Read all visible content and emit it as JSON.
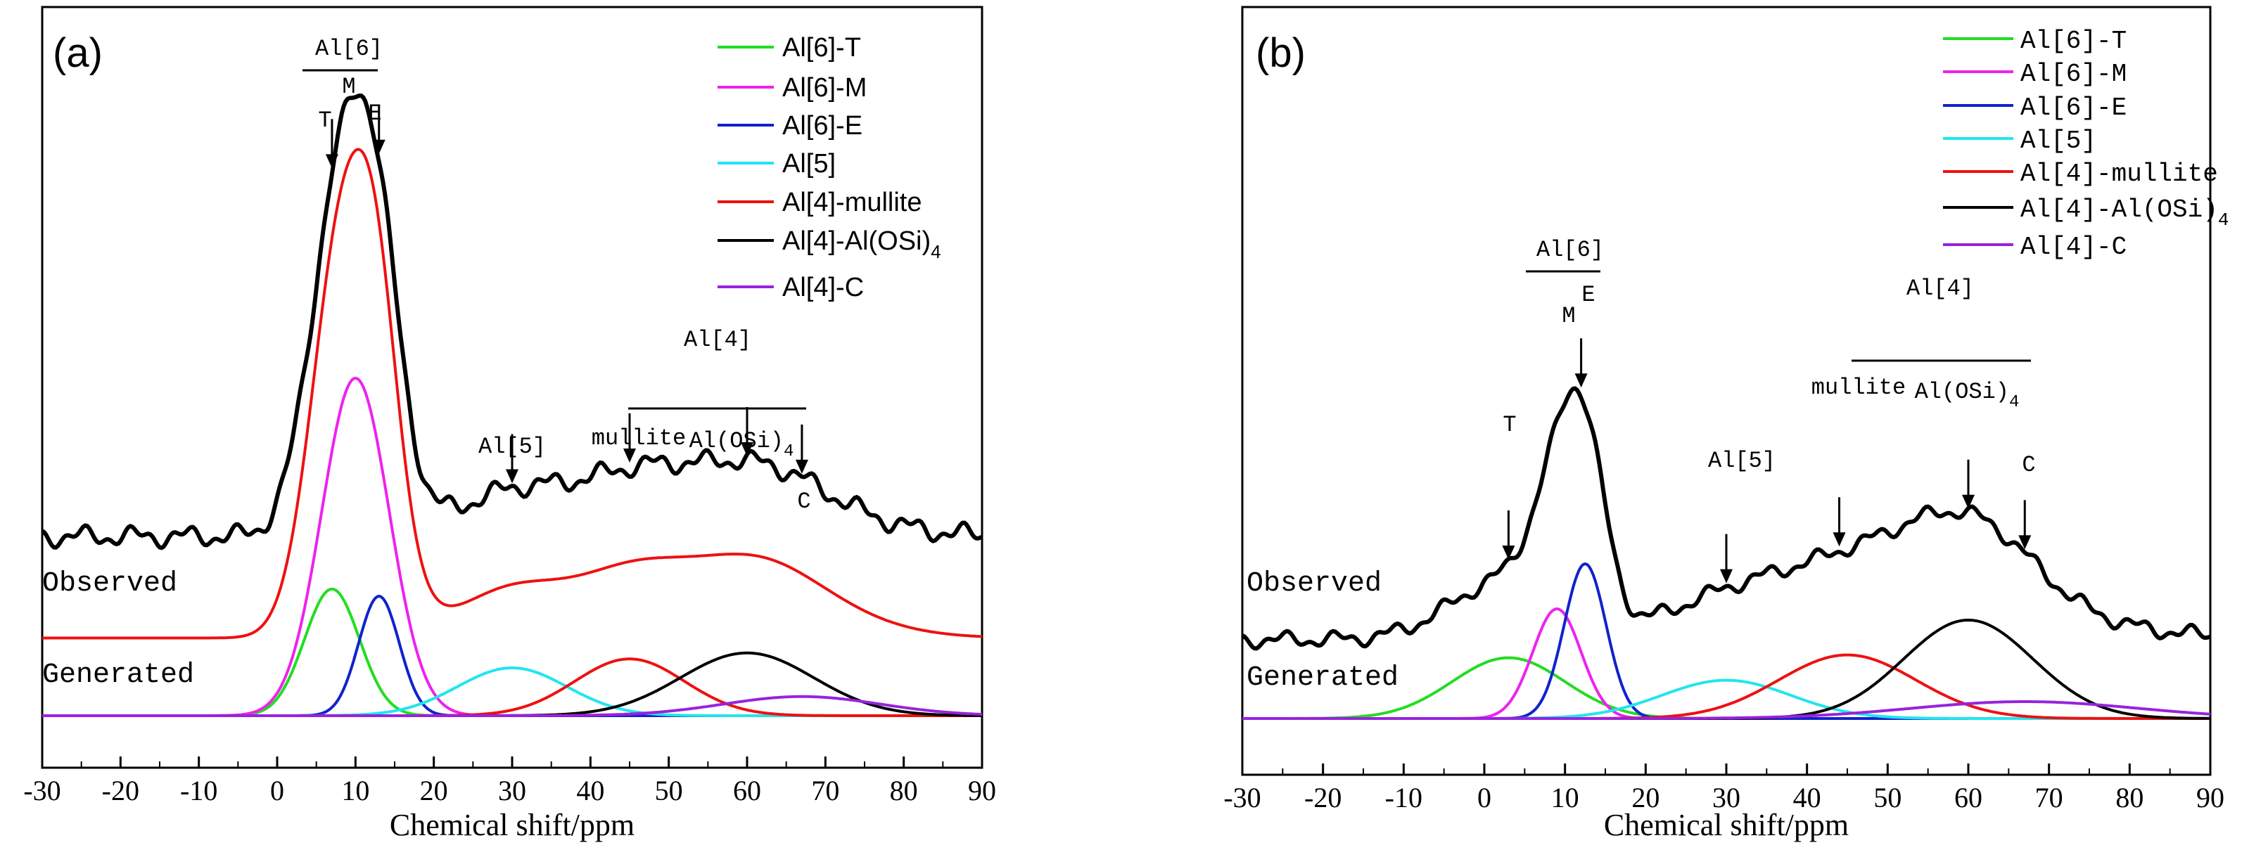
{
  "colors": {
    "Al6T": "#22dd22",
    "Al6M": "#ee22ee",
    "Al6E": "#1122cc",
    "Al5": "#22e5ee",
    "Al4mullite": "#ee1111",
    "Al4AlOSi4": "#000000",
    "Al4C": "#9922dd",
    "observed": "#000000"
  },
  "chart_data": [
    {
      "type": "line",
      "panel": "(a)",
      "xlabel": "Chemical shift/ppm",
      "ylabel": "",
      "xlim": [
        -30,
        90
      ],
      "ylim": [
        0,
        1.0
      ],
      "xticks": [
        "-30",
        "-20",
        "-10",
        "0",
        "10",
        "20",
        "30",
        "40",
        "50",
        "60",
        "70",
        "80",
        "90"
      ],
      "legend": [
        "Al[6]-T",
        "Al[6]-M",
        "Al[6]-E",
        "Al[5]",
        "Al[4]-mullite",
        "Al[4]-Al(OSi)",
        "Al[4]-C"
      ],
      "legend_subscript": "4",
      "trace_labels": {
        "observed": "Observed",
        "generated": "Generated"
      },
      "annotations": {
        "al6": "Al[6]",
        "m": "M",
        "t": "T",
        "e": "E",
        "al5": "Al[5]",
        "al4": "Al[4]",
        "mullite": "mullite",
        "alosi": "Al(OSi)",
        "alosi_sub": "4",
        "c": "C"
      },
      "annotation_arrows_at_ppm": {
        "T": 7,
        "E": 13,
        "Al5": 30,
        "mullite": 45,
        "AlOSi4": 60,
        "C": 67
      },
      "components": [
        {
          "name": "Al[6]-T",
          "center": 7,
          "width": 3.5,
          "height": 0.212,
          "color_key": "Al6T"
        },
        {
          "name": "Al[6]-M",
          "center": 10,
          "width": 4.3,
          "height": 0.565,
          "color_key": "Al6M"
        },
        {
          "name": "Al[6]-E",
          "center": 13,
          "width": 2.6,
          "height": 0.2,
          "color_key": "Al6E"
        },
        {
          "name": "Al[5]",
          "center": 30,
          "width": 7.0,
          "height": 0.08,
          "color_key": "Al5"
        },
        {
          "name": "Al[4]-mullite",
          "center": 45,
          "width": 7.0,
          "height": 0.095,
          "color_key": "Al4mullite"
        },
        {
          "name": "Al[4]-Al(OSi)4",
          "center": 60,
          "width": 8.5,
          "height": 0.105,
          "color_key": "Al4AlOSi4"
        },
        {
          "name": "Al[4]-C",
          "center": 67,
          "width": 10.0,
          "height": 0.032,
          "color_key": "Al4C"
        }
      ],
      "generated_offset": 0.13,
      "observed_offset": 0.3,
      "observed_scale": 0.91,
      "observed_ripple": 0.012
    },
    {
      "type": "line",
      "panel": "(b)",
      "xlabel": "Chemical shift/ppm",
      "ylabel": "",
      "xlim": [
        -30,
        90
      ],
      "ylim": [
        0,
        1.0
      ],
      "xticks": [
        "-30",
        "-20",
        "-10",
        "0",
        "10",
        "20",
        "30",
        "40",
        "50",
        "60",
        "70",
        "80",
        "90"
      ],
      "legend": [
        "Al[6]-T",
        "Al[6]-M",
        "Al[6]-E",
        "Al[5]",
        "Al[4]-mullite",
        "Al[4]-Al(OSi)",
        "Al[4]-C"
      ],
      "legend_subscript": "4",
      "trace_labels": {
        "observed": "Observed",
        "generated": "Generated"
      },
      "annotations": {
        "al6": "Al[6]",
        "m": "M",
        "t": "T",
        "e": "E",
        "al5": "Al[5]",
        "al4": "Al[4]",
        "mullite": "mullite",
        "alosi": "Al(OSi)",
        "alosi_sub": "4",
        "c": "C"
      },
      "annotation_arrows_at_ppm": {
        "T": 3,
        "E": 12,
        "Al5": 30,
        "mullite": 44,
        "AlOSi4": 60,
        "C": 67
      },
      "components": [
        {
          "name": "Al[6]-T",
          "center": 3,
          "width": 7.0,
          "height": 0.108,
          "color_key": "Al6T"
        },
        {
          "name": "Al[6]-M",
          "center": 9,
          "width": 3.0,
          "height": 0.195,
          "color_key": "Al6M"
        },
        {
          "name": "Al[6]-E",
          "center": 12.5,
          "width": 2.6,
          "height": 0.275,
          "color_key": "Al6E"
        },
        {
          "name": "Al[5]",
          "center": 30,
          "width": 8.0,
          "height": 0.068,
          "color_key": "Al5"
        },
        {
          "name": "Al[4]-mullite",
          "center": 45,
          "width": 8.5,
          "height": 0.113,
          "color_key": "Al4mullite"
        },
        {
          "name": "Al[4]-Al(OSi)4",
          "center": 60,
          "width": 8.0,
          "height": 0.175,
          "color_key": "Al4AlOSi4"
        },
        {
          "name": "Al[4]-C",
          "center": 67,
          "width": 14.0,
          "height": 0.03,
          "color_key": "Al4C"
        }
      ],
      "generated_offset": 0.0,
      "observed_offset": 0.14,
      "observed_scale": 1.0,
      "observed_ripple": 0.01
    }
  ]
}
